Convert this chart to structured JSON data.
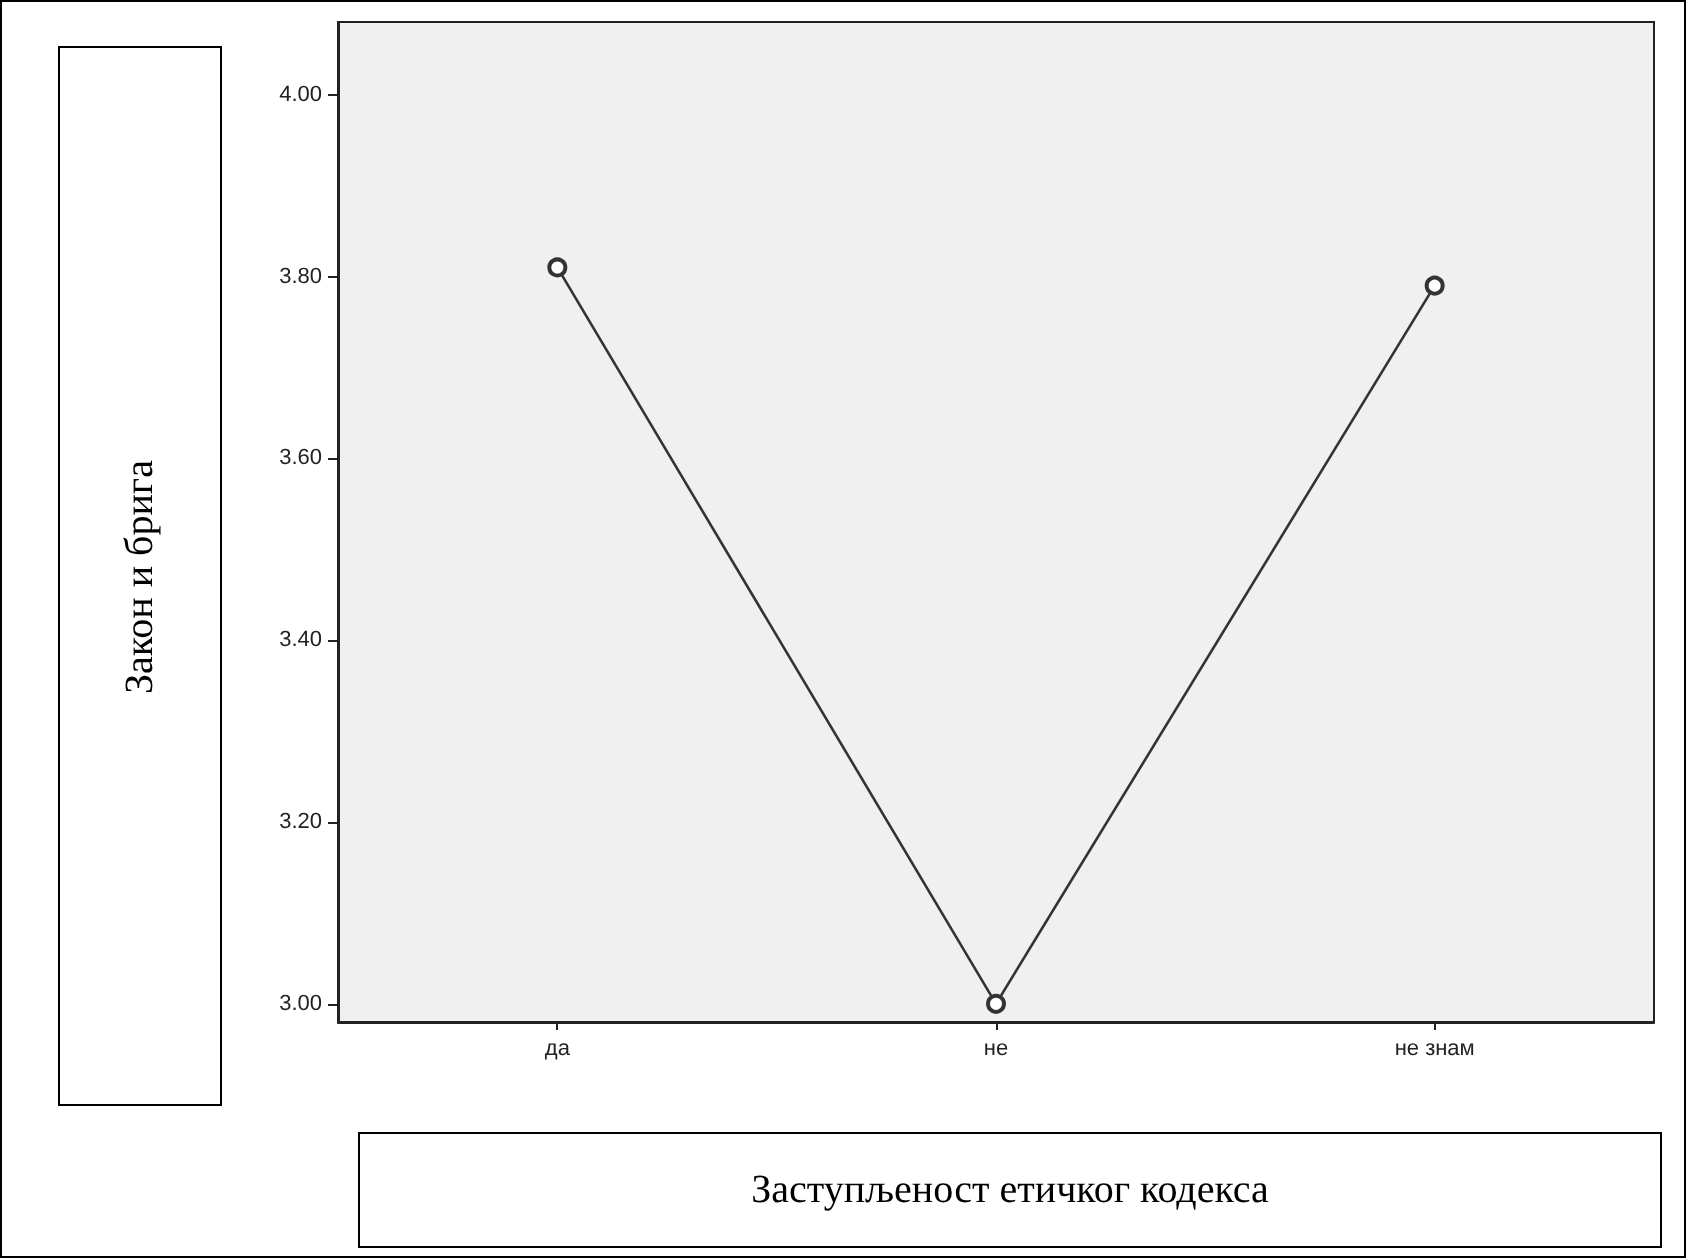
{
  "chart_data": {
    "type": "line",
    "xlabel": "Заступљеност етичког кодекса",
    "ylabel": "Закон и брига",
    "categories": [
      "да",
      "не",
      "не знам"
    ],
    "series": [
      {
        "color": "#333333",
        "values": [
          3.81,
          3.0,
          3.79
        ]
      }
    ],
    "ylim": [
      2.98,
      4.08
    ],
    "yticks": [
      {
        "value": 3,
        "label": "3.00"
      },
      {
        "value": 3.2,
        "label": "3.20"
      },
      {
        "value": 3.4,
        "label": "3.40"
      },
      {
        "value": 3.6,
        "label": "3.60"
      },
      {
        "value": 3.8,
        "label": "3.80"
      },
      {
        "value": 4,
        "label": "4.00"
      }
    ],
    "grid": false,
    "marker": "circle",
    "line_style": "solid"
  }
}
